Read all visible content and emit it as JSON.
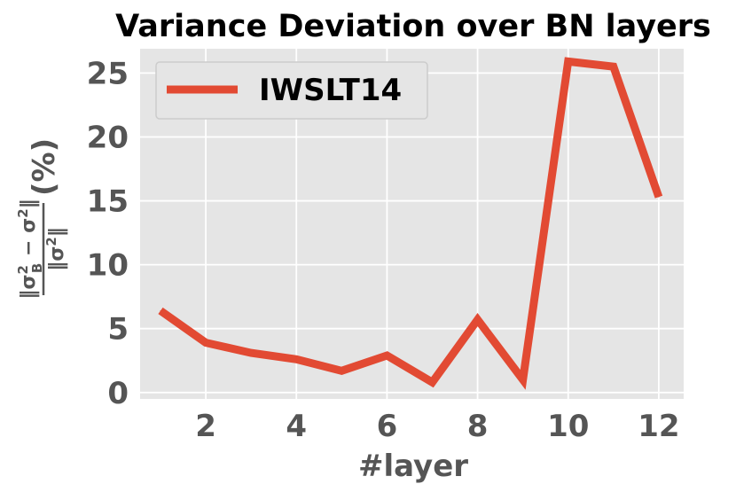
{
  "chart_data": {
    "type": "line",
    "title": "Variance Deviation over BN layers",
    "xlabel": "#layer",
    "ylabel": {
      "numerator": "‖σ",
      "numerator_sub": "B",
      "numerator_sup": "2",
      "numerator_rest": " − σ",
      "numerator_rest_sup": "2",
      "numerator_end": "‖",
      "denominator": "‖σ",
      "denominator_sup": "2",
      "denominator_end": "‖",
      "suffix": "(%)"
    },
    "x": [
      1,
      2,
      3,
      4,
      5,
      6,
      7,
      8,
      9,
      10,
      11,
      12
    ],
    "series": [
      {
        "name": "IWSLT14",
        "color": "#E24A33",
        "values": [
          6.4,
          3.9,
          3.1,
          2.6,
          1.7,
          2.9,
          0.8,
          5.7,
          1.0,
          25.9,
          25.5,
          15.3
        ]
      }
    ],
    "xlim": [
      0.55,
      12.55
    ],
    "ylim": [
      -0.5,
      26.9
    ],
    "xticks": [
      2,
      4,
      6,
      8,
      10,
      12
    ],
    "xtick_labels": [
      "2",
      "4",
      "6",
      "8",
      "10",
      "12"
    ],
    "yticks": [
      0,
      5,
      10,
      15,
      20,
      25
    ],
    "ytick_labels": [
      "0",
      "5",
      "10",
      "15",
      "20",
      "25"
    ],
    "grid": true,
    "legend_position": "top-left",
    "background_color": "#E5E5E5",
    "grid_color": "#FFFFFF"
  }
}
